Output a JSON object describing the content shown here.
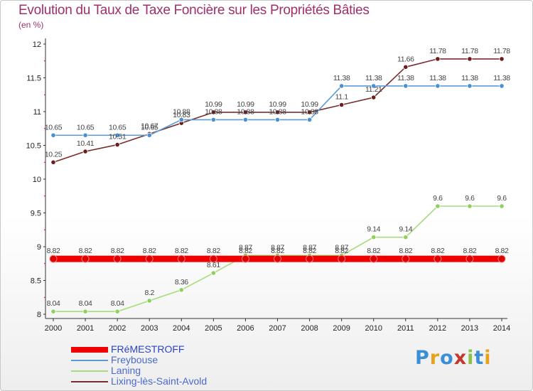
{
  "chart_data": {
    "type": "line",
    "title": "Evolution du Taux de Taxe Foncière sur les Propriétés Bâties",
    "subtitle": "(en %)",
    "xlabel": "",
    "ylabel": "",
    "x": [
      "2000",
      "2001",
      "2002",
      "2003",
      "2004",
      "2005",
      "2006",
      "2007",
      "2008",
      "2009",
      "2010",
      "2011",
      "2012",
      "2013",
      "2014"
    ],
    "ylim": [
      8,
      12
    ],
    "yticks": [
      "8",
      "8.5",
      "9",
      "9.5",
      "10",
      "10.5",
      "11",
      "11.5",
      "12"
    ],
    "ytick_values": [
      8,
      8.5,
      9,
      9.5,
      10,
      10.5,
      11,
      11.5,
      12
    ],
    "grid": false,
    "legend_position": "bottom-left",
    "series": [
      {
        "name": "FRéMESTROFF",
        "color": "#ee0000",
        "values": [
          8.82,
          8.82,
          8.82,
          8.82,
          8.82,
          8.82,
          8.82,
          8.82,
          8.82,
          8.82,
          8.82,
          8.82,
          8.82,
          8.82,
          8.82
        ],
        "labels": [
          "8.82",
          "8.82",
          "8.82",
          "8.82",
          "8.82",
          "8.82",
          "8.82",
          "8.82",
          "8.82",
          "8.82",
          "8.82",
          "8.82",
          "8.82",
          "8.82",
          "8.82"
        ]
      },
      {
        "name": "Freybouse",
        "color": "#5b9bd5",
        "values": [
          10.65,
          10.65,
          10.65,
          10.65,
          10.88,
          10.88,
          10.88,
          10.88,
          10.88,
          11.38,
          11.38,
          11.38,
          11.38,
          11.38,
          11.38
        ],
        "labels": [
          "10.65",
          "10.65",
          "10.65",
          "10.65",
          "10.88",
          "10.88",
          "10.88",
          "10.88",
          "10.88",
          "11.38",
          "11.38",
          "11.38",
          "11.38",
          "11.38",
          "11.38"
        ]
      },
      {
        "name": "Laning",
        "color": "#a6dc7a",
        "values": [
          8.04,
          8.04,
          8.04,
          8.2,
          8.36,
          8.61,
          8.87,
          8.87,
          8.87,
          8.87,
          9.14,
          9.14,
          9.6,
          9.6,
          9.6
        ],
        "labels": [
          "8.04",
          "8.04",
          "8.04",
          "8.2",
          "8.36",
          "8.61",
          "8.87",
          "8.87",
          "8.87",
          "8.87",
          "9.14",
          "9.14",
          "9.6",
          "9.6",
          "9.6"
        ]
      },
      {
        "name": "Lixing-lès-Saint-Avold",
        "color": "#7b2c2c",
        "values": [
          10.25,
          10.41,
          10.51,
          10.67,
          10.83,
          10.99,
          10.99,
          10.99,
          10.99,
          11.1,
          11.21,
          11.66,
          11.78,
          11.78,
          11.78
        ],
        "labels": [
          "10.25",
          "10.41",
          "10.51",
          "10.67",
          "10.83",
          "10.99",
          "10.99",
          "10.99",
          "10.99",
          "11.1",
          "11.21",
          "11.66",
          "11.78",
          "11.78",
          "11.78"
        ]
      }
    ]
  },
  "logo": {
    "letters": [
      "P",
      "r",
      "o",
      "x",
      "i",
      "t",
      "i"
    ],
    "colors": [
      "#3b8fd6",
      "#e8a21a",
      "#3b8fd6",
      "#c0392b",
      "#8bc34a",
      "#3b8fd6",
      "#e8a21a"
    ]
  }
}
